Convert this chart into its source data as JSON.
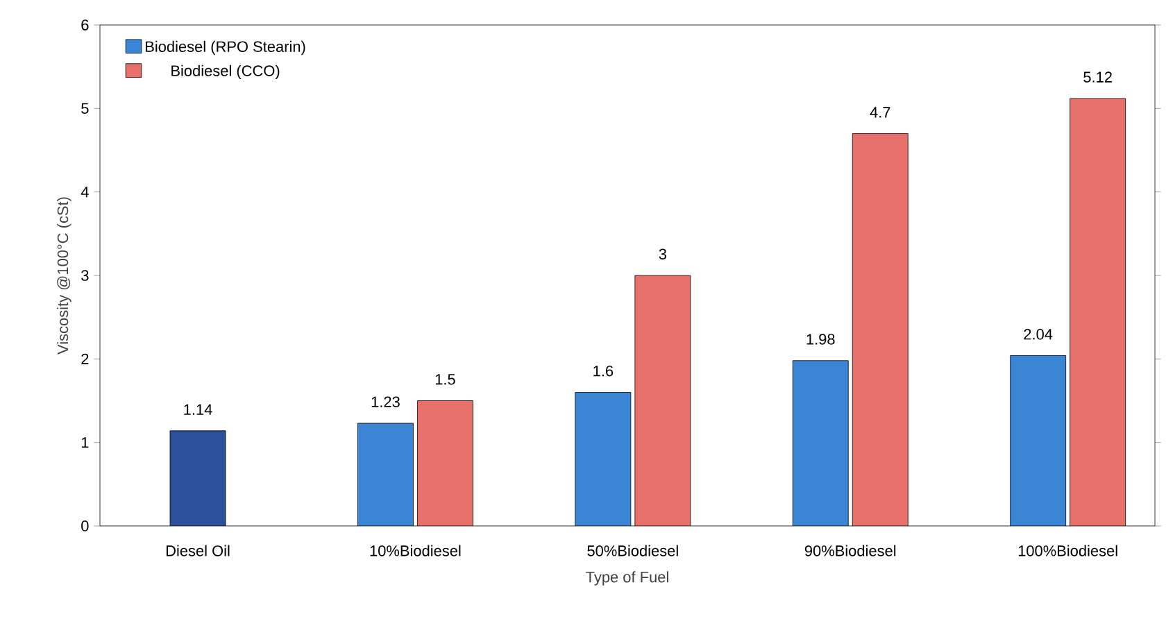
{
  "chart_data": {
    "type": "bar",
    "xlabel": "Type of Fuel",
    "ylabel": "Viscosity @100°C (cSt)",
    "categories": [
      "Diesel Oil",
      "10%Biodiesel",
      "50%Biodiesel",
      "90%Biodiesel",
      "100%Biodiesel"
    ],
    "series": [
      {
        "name": "Biodiesel (RPO Stearin)",
        "color": "#3a86d4",
        "values": [
          null,
          1.23,
          1.6,
          1.98,
          2.04
        ]
      },
      {
        "name": "Biodiesel (CCO)",
        "color": "#e8706a",
        "values": [
          null,
          1.5,
          3,
          4.7,
          5.12
        ]
      },
      {
        "color": "#2c4f9a",
        "values": [
          1.14,
          null,
          null,
          null,
          null
        ]
      }
    ],
    "ylim": [
      0,
      6
    ],
    "yticks": [
      0,
      1,
      2,
      3,
      4,
      5,
      6
    ],
    "legend": "top left",
    "data_labels": true
  }
}
